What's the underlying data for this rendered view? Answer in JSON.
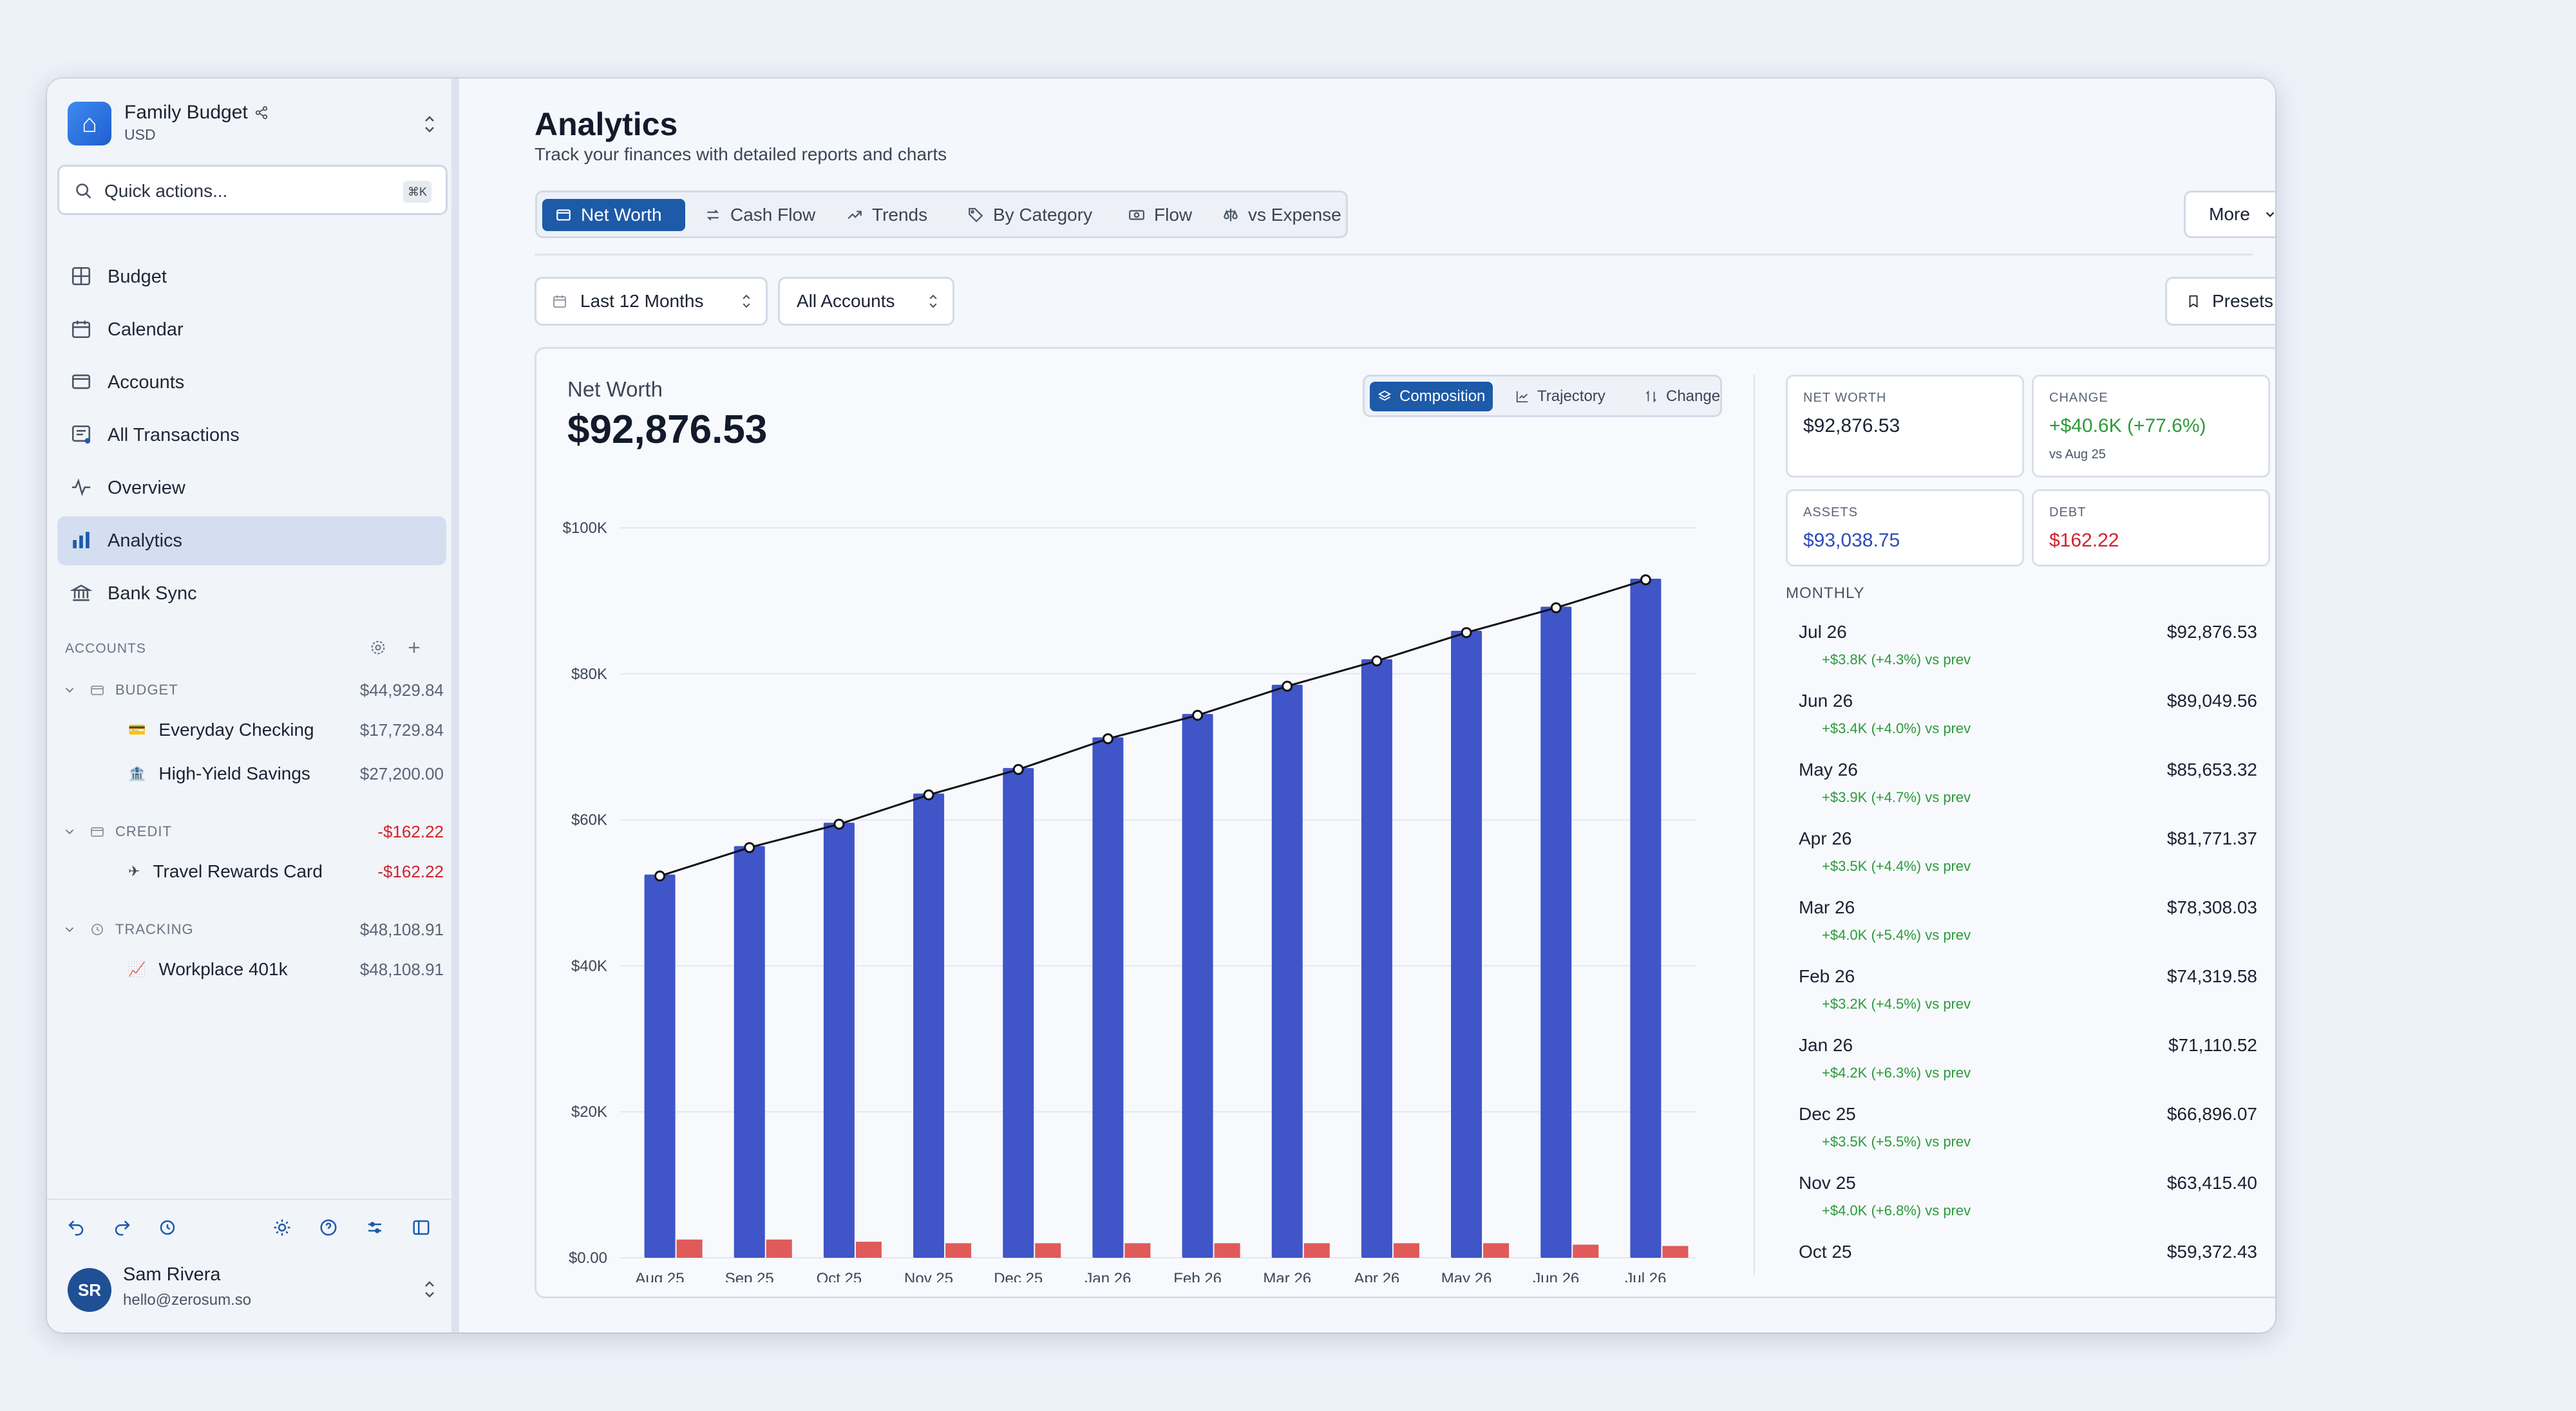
{
  "workspace": {
    "name": "Family Budget",
    "currency": "USD",
    "logo_icon": "house-icon"
  },
  "search": {
    "placeholder": "Quick actions...",
    "shortcut": "⌘K"
  },
  "nav": [
    {
      "label": "Budget",
      "icon": "grid-icon"
    },
    {
      "label": "Calendar",
      "icon": "calendar-icon"
    },
    {
      "label": "Accounts",
      "icon": "folder-icon"
    },
    {
      "label": "All Transactions",
      "icon": "receipt-icon"
    },
    {
      "label": "Overview",
      "icon": "pulse-icon"
    },
    {
      "label": "Analytics",
      "icon": "bar-chart-icon",
      "active": true
    },
    {
      "label": "Bank Sync",
      "icon": "bank-icon"
    }
  ],
  "accounts_section": {
    "title": "ACCOUNTS"
  },
  "account_groups": [
    {
      "name": "BUDGET",
      "total": "$44,929.84",
      "accounts": [
        {
          "name": "Everyday Checking",
          "amount": "$17,729.84"
        },
        {
          "name": "High-Yield Savings",
          "amount": "$27,200.00"
        }
      ]
    },
    {
      "name": "CREDIT",
      "total": "-$162.22",
      "accounts": [
        {
          "name": "Travel Rewards Card",
          "amount": "-$162.22"
        }
      ]
    },
    {
      "name": "TRACKING",
      "total": "$48,108.91",
      "accounts": [
        {
          "name": "Workplace 401k",
          "amount": "$48,108.91"
        }
      ]
    }
  ],
  "user": {
    "initials": "SR",
    "name": "Sam Rivera",
    "email": "hello@zerosum.so"
  },
  "page": {
    "title": "Analytics",
    "subtitle": "Track your finances with detailed reports and charts"
  },
  "tabs": [
    "Net Worth",
    "Cash Flow",
    "Trends",
    "By Category",
    "Flow",
    "vs Expense"
  ],
  "active_tab": "Net Worth",
  "more_label": "More",
  "filters": {
    "range": "Last 12 Months",
    "accounts": "All Accounts",
    "presets": "Presets"
  },
  "card": {
    "label": "Net Worth",
    "value": "$92,876.53",
    "modes": [
      "Composition",
      "Trajectory",
      "Change"
    ],
    "active_mode": "Composition"
  },
  "stats": {
    "net_worth": {
      "label": "NET WORTH",
      "value": "$92,876.53"
    },
    "change": {
      "label": "CHANGE",
      "value": "+$40.6K (+77.6%)",
      "sub": "vs Aug 25"
    },
    "assets": {
      "label": "ASSETS",
      "value": "$93,038.75"
    },
    "debt": {
      "label": "DEBT",
      "value": "$162.22"
    }
  },
  "monthly_title": "MONTHLY",
  "monthly": [
    {
      "month": "Jul 26",
      "amount": "$92,876.53",
      "change": "+$3.8K (+4.3%) vs prev"
    },
    {
      "month": "Jun 26",
      "amount": "$89,049.56",
      "change": "+$3.4K (+4.0%) vs prev"
    },
    {
      "month": "May 26",
      "amount": "$85,653.32",
      "change": "+$3.9K (+4.7%) vs prev"
    },
    {
      "month": "Apr 26",
      "amount": "$81,771.37",
      "change": "+$3.5K (+4.4%) vs prev"
    },
    {
      "month": "Mar 26",
      "amount": "$78,308.03",
      "change": "+$4.0K (+5.4%) vs prev"
    },
    {
      "month": "Feb 26",
      "amount": "$74,319.58",
      "change": "+$3.2K (+4.5%) vs prev"
    },
    {
      "month": "Jan 26",
      "amount": "$71,110.52",
      "change": "+$4.2K (+6.3%) vs prev"
    },
    {
      "month": "Dec 25",
      "amount": "$66,896.07",
      "change": "+$3.5K (+5.5%) vs prev"
    },
    {
      "month": "Nov 25",
      "amount": "$63,415.40",
      "change": "+$4.0K (+6.8%) vs prev"
    },
    {
      "month": "Oct 25",
      "amount": "$59,372.43",
      "change": ""
    }
  ],
  "colors": {
    "accent": "#1d5aa8",
    "assets_bar": "#3f55c8",
    "debt_bar": "#e05a5a",
    "positive": "#2c9a3c",
    "negative": "#d2222d"
  },
  "chart_data": {
    "type": "bar",
    "categories": [
      "Aug 25",
      "Sep 25",
      "Oct 25",
      "Nov 25",
      "Dec 25",
      "Jan 26",
      "Feb 26",
      "Mar 26",
      "Apr 26",
      "May 26",
      "Jun 26",
      "Jul 26"
    ],
    "series": [
      {
        "name": "Assets",
        "values": [
          52500,
          56400,
          59600,
          63600,
          67100,
          71300,
          74500,
          78500,
          82000,
          85900,
          89200,
          93038.75
        ]
      },
      {
        "name": "Debt",
        "values": [
          250,
          250,
          220,
          200,
          200,
          200,
          200,
          200,
          200,
          200,
          180,
          162.22
        ]
      },
      {
        "name": "Net Worth",
        "type": "line",
        "values": [
          52300,
          56200,
          59400,
          63415.4,
          66896.07,
          71110.52,
          74319.58,
          78308.03,
          81771.37,
          85653.32,
          89049.56,
          92876.53
        ]
      }
    ],
    "y_ticks": [
      "$0.00",
      "$20K",
      "$40K",
      "$60K",
      "$80K",
      "$100K"
    ],
    "ylim": [
      0,
      100000
    ],
    "grid": true
  }
}
